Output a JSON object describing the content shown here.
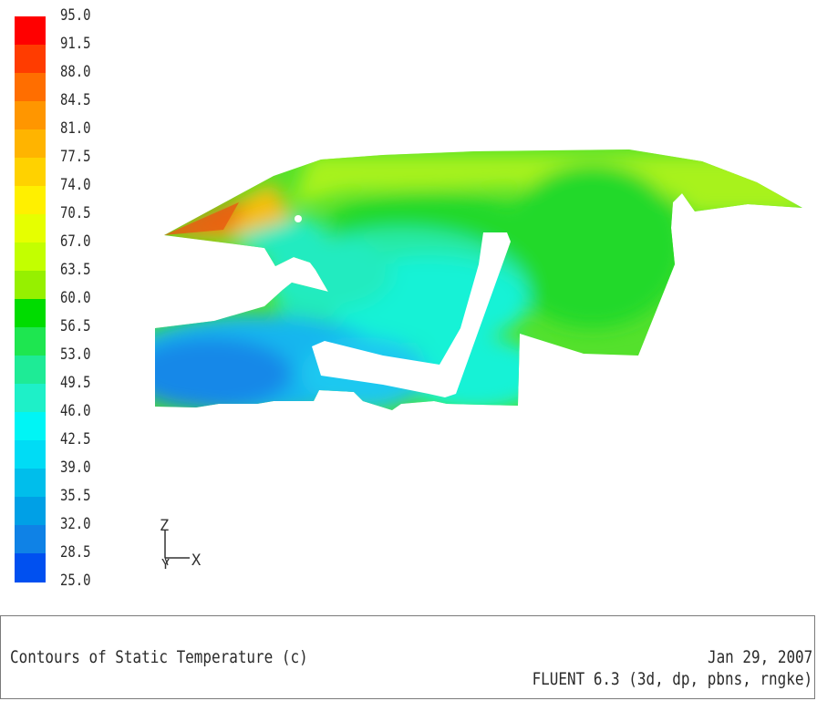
{
  "colormap": {
    "labels": [
      "95.0",
      "91.5",
      "88.0",
      "84.5",
      "81.0",
      "77.5",
      "74.0",
      "70.5",
      "67.0",
      "63.5",
      "60.0",
      "56.5",
      "53.0",
      "49.5",
      "46.0",
      "42.5",
      "39.0",
      "35.5",
      "32.0",
      "28.5",
      "25.0"
    ],
    "band_colors": [
      "#ff0000",
      "#ff3c00",
      "#ff6e00",
      "#ff9600",
      "#ffb400",
      "#ffd200",
      "#fff000",
      "#e6ff00",
      "#c3ff00",
      "#96f000",
      "#00dc00",
      "#1ee650",
      "#1eeb96",
      "#1ef0c8",
      "#00f5f5",
      "#00dcf5",
      "#00beeb",
      "#00a0e6",
      "#0f82e6",
      "#0050f0"
    ],
    "max": 95.0,
    "min": 25.0
  },
  "axes": {
    "z_label": "Z",
    "y_label": "Y",
    "x_label": "X"
  },
  "title_box": {
    "title": "Contours of Static Temperature (c)",
    "date": "Jan 29, 2007",
    "solver": "FLUENT 6.3 (3d, dp, pbns, rngke)"
  }
}
